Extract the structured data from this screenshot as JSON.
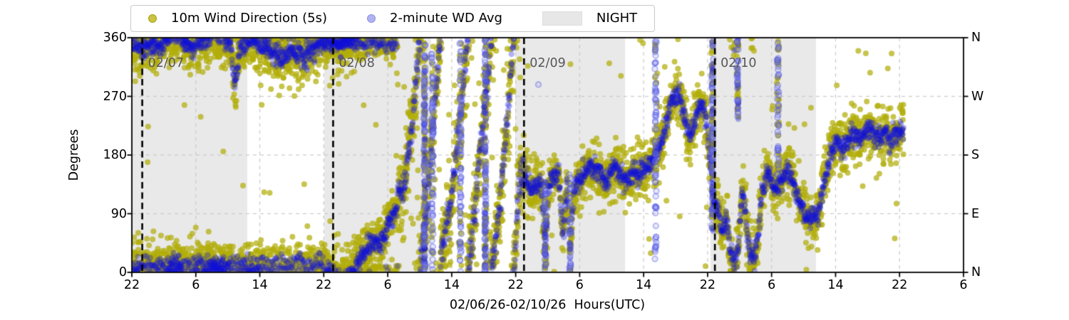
{
  "chart_data": {
    "type": "scatter",
    "title": "",
    "xlabel": "02/06/26-02/10/26  Hours(UTC)",
    "ylabel": "Degrees",
    "x_start": "02/06 22:00 UTC",
    "x_span_hours": 104,
    "ylim": [
      0,
      360
    ],
    "grid": true,
    "legend_position": "top",
    "legend_items": [
      {
        "label": "10m Wind Direction (5s)",
        "marker": "dot",
        "color": "#c9c340"
      },
      {
        "label": "2-minute WD Avg",
        "marker": "dot",
        "color": "#b0b3f2"
      },
      {
        "label": "NIGHT",
        "marker": "patch",
        "color": "#e7e7e7"
      }
    ],
    "yticks": [
      {
        "value": 0,
        "label": "0",
        "compass": "N"
      },
      {
        "value": 90,
        "label": "90",
        "compass": "E"
      },
      {
        "value": 180,
        "label": "180",
        "compass": "S"
      },
      {
        "value": 270,
        "label": "270",
        "compass": "W"
      },
      {
        "value": 360,
        "label": "360",
        "compass": "N"
      }
    ],
    "xticks": [
      {
        "hour": 0,
        "label": "22"
      },
      {
        "hour": 8,
        "label": "6"
      },
      {
        "hour": 16,
        "label": "14"
      },
      {
        "hour": 24,
        "label": "22"
      },
      {
        "hour": 32,
        "label": "6"
      },
      {
        "hour": 40,
        "label": "14"
      },
      {
        "hour": 48,
        "label": "22"
      },
      {
        "hour": 56,
        "label": "6"
      },
      {
        "hour": 64,
        "label": "14"
      },
      {
        "hour": 72,
        "label": "22"
      },
      {
        "hour": 80,
        "label": "6"
      },
      {
        "hour": 88,
        "label": "14"
      },
      {
        "hour": 96,
        "label": "22"
      },
      {
        "hour": 104,
        "label": "6"
      }
    ],
    "night_spans_hours": [
      [
        0,
        14.44
      ],
      [
        24.06,
        37.43
      ],
      [
        47.94,
        61.68
      ],
      [
        72.36,
        85.56
      ]
    ],
    "date_lines": [
      {
        "label": "02/07",
        "hour": 1.3
      },
      {
        "label": "02/08",
        "hour": 25.17
      },
      {
        "label": "02/09",
        "hour": 49.04
      },
      {
        "label": "02/10",
        "hour": 72.91
      }
    ],
    "series": [
      {
        "name": "10m Wind Direction (5s)",
        "dense_color": "#b2ad0a",
        "alpha": 0.72,
        "marker_radius": 4.0,
        "noise_sd_deg": 21
      },
      {
        "name": "2-minute WD Avg",
        "dense_color": "#1111db",
        "single_color": "#aaaef0",
        "alpha": 0.32,
        "marker_radius": 4.2,
        "noise_sd_deg": 8
      }
    ],
    "data_end_hour": 96.5,
    "sample_step_hours": 0.08,
    "chaos_window_hours": [
      33,
      49
    ],
    "mean_profile": [
      [
        0,
        345
      ],
      [
        2,
        352
      ],
      [
        4,
        348
      ],
      [
        6,
        352
      ],
      [
        8,
        344
      ],
      [
        10,
        350
      ],
      [
        12.3,
        342
      ],
      [
        12.9,
        278
      ],
      [
        13.6,
        330
      ],
      [
        15,
        346
      ],
      [
        17,
        351
      ],
      [
        19,
        343
      ],
      [
        21,
        352
      ],
      [
        23,
        348
      ],
      [
        24.5,
        362
      ],
      [
        26,
        370
      ],
      [
        28,
        384
      ],
      [
        29.5,
        394
      ],
      [
        31,
        408
      ],
      [
        32,
        424
      ],
      [
        33,
        446
      ],
      [
        34,
        468
      ],
      [
        34.8,
        540
      ],
      [
        35.4,
        620
      ],
      [
        36.2,
        730
      ],
      [
        37,
        830
      ],
      [
        37.8,
        960
      ],
      [
        38.6,
        1080
      ],
      [
        39.5,
        1170
      ],
      [
        40.5,
        1262
      ],
      [
        41.5,
        1380
      ],
      [
        42.5,
        1500
      ],
      [
        43.5,
        1620
      ],
      [
        44.5,
        1740
      ],
      [
        45.5,
        1860
      ],
      [
        46.5,
        1970
      ],
      [
        47.2,
        2075
      ],
      [
        47.9,
        2190
      ],
      [
        48.4,
        2295
      ],
      [
        49,
        2310
      ],
      [
        50,
        2302
      ],
      [
        51.2,
        2296
      ],
      [
        51.7,
        2200
      ],
      [
        52.2,
        2296
      ],
      [
        53.4,
        2302
      ],
      [
        53.9,
        2212
      ],
      [
        54.4,
        2300
      ],
      [
        54.8,
        2186
      ],
      [
        55.3,
        2296
      ],
      [
        56,
        2310
      ],
      [
        57.5,
        2330
      ],
      [
        59,
        2312
      ],
      [
        60.5,
        2324
      ],
      [
        62,
        2302
      ],
      [
        63.5,
        2310
      ],
      [
        65,
        2318
      ],
      [
        66.5,
        2370
      ],
      [
        67.5,
        2420
      ],
      [
        68.5,
        2430
      ],
      [
        69.3,
        2400
      ],
      [
        70,
        2386
      ],
      [
        70.7,
        2420
      ],
      [
        71.3,
        2430
      ],
      [
        71.8,
        2410
      ],
      [
        72.3,
        2330
      ],
      [
        72.8,
        2260
      ],
      [
        73.3,
        2256
      ],
      [
        73.8,
        2220
      ],
      [
        74.3,
        2260
      ],
      [
        74.8,
        2200
      ],
      [
        75.3,
        2176
      ],
      [
        75.8,
        2200
      ],
      [
        76.3,
        2290
      ],
      [
        76.8,
        2250
      ],
      [
        77.3,
        2180
      ],
      [
        77.8,
        2176
      ],
      [
        78.3,
        2220
      ],
      [
        78.9,
        2290
      ],
      [
        79.5,
        2310
      ],
      [
        80.2,
        2296
      ],
      [
        81,
        2290
      ],
      [
        82,
        2310
      ],
      [
        83,
        2280
      ],
      [
        84,
        2266
      ],
      [
        85,
        2256
      ],
      [
        85.8,
        2270
      ],
      [
        86.6,
        2310
      ],
      [
        87.4,
        2356
      ],
      [
        88.2,
        2376
      ],
      [
        89,
        2366
      ],
      [
        90,
        2386
      ],
      [
        91,
        2366
      ],
      [
        92,
        2376
      ],
      [
        93,
        2360
      ],
      [
        94,
        2380
      ],
      [
        95,
        2370
      ],
      [
        96.5,
        2378
      ]
    ],
    "secondary_bands": [
      {
        "t0": 0.1,
        "t1": 24,
        "mean": 371,
        "sd": 10
      },
      {
        "t0": 24,
        "t1": 33.2,
        "mean": 351,
        "sd": 7
      }
    ],
    "streaks": [
      {
        "hour": 36.6,
        "lo": 0,
        "hi": 360,
        "kind": "both"
      },
      {
        "hour": 37.6,
        "lo": 0,
        "hi": 360,
        "kind": "rings"
      },
      {
        "hour": 41.1,
        "lo": 0,
        "hi": 360,
        "kind": "rings"
      },
      {
        "hour": 44.2,
        "lo": 0,
        "hi": 360,
        "kind": "both"
      },
      {
        "hour": 51.7,
        "lo": 0,
        "hi": 140,
        "kind": "both"
      },
      {
        "hour": 54.8,
        "lo": 0,
        "hi": 150,
        "kind": "rings"
      },
      {
        "hour": 65.5,
        "lo": 10,
        "hi": 360,
        "kind": "rings"
      },
      {
        "hour": 72.6,
        "lo": 60,
        "hi": 360,
        "kind": "both"
      },
      {
        "hour": 75.75,
        "lo": 235,
        "hi": 360,
        "kind": "both"
      },
      {
        "hour": 80.8,
        "lo": 140,
        "hi": 355,
        "kind": "yellow"
      }
    ],
    "colors": {
      "night_fill": "#e9e9e9",
      "gridline": "#c9c9c9",
      "date_line": "#000000",
      "date_label": "#575757",
      "spine": "#000000"
    }
  }
}
